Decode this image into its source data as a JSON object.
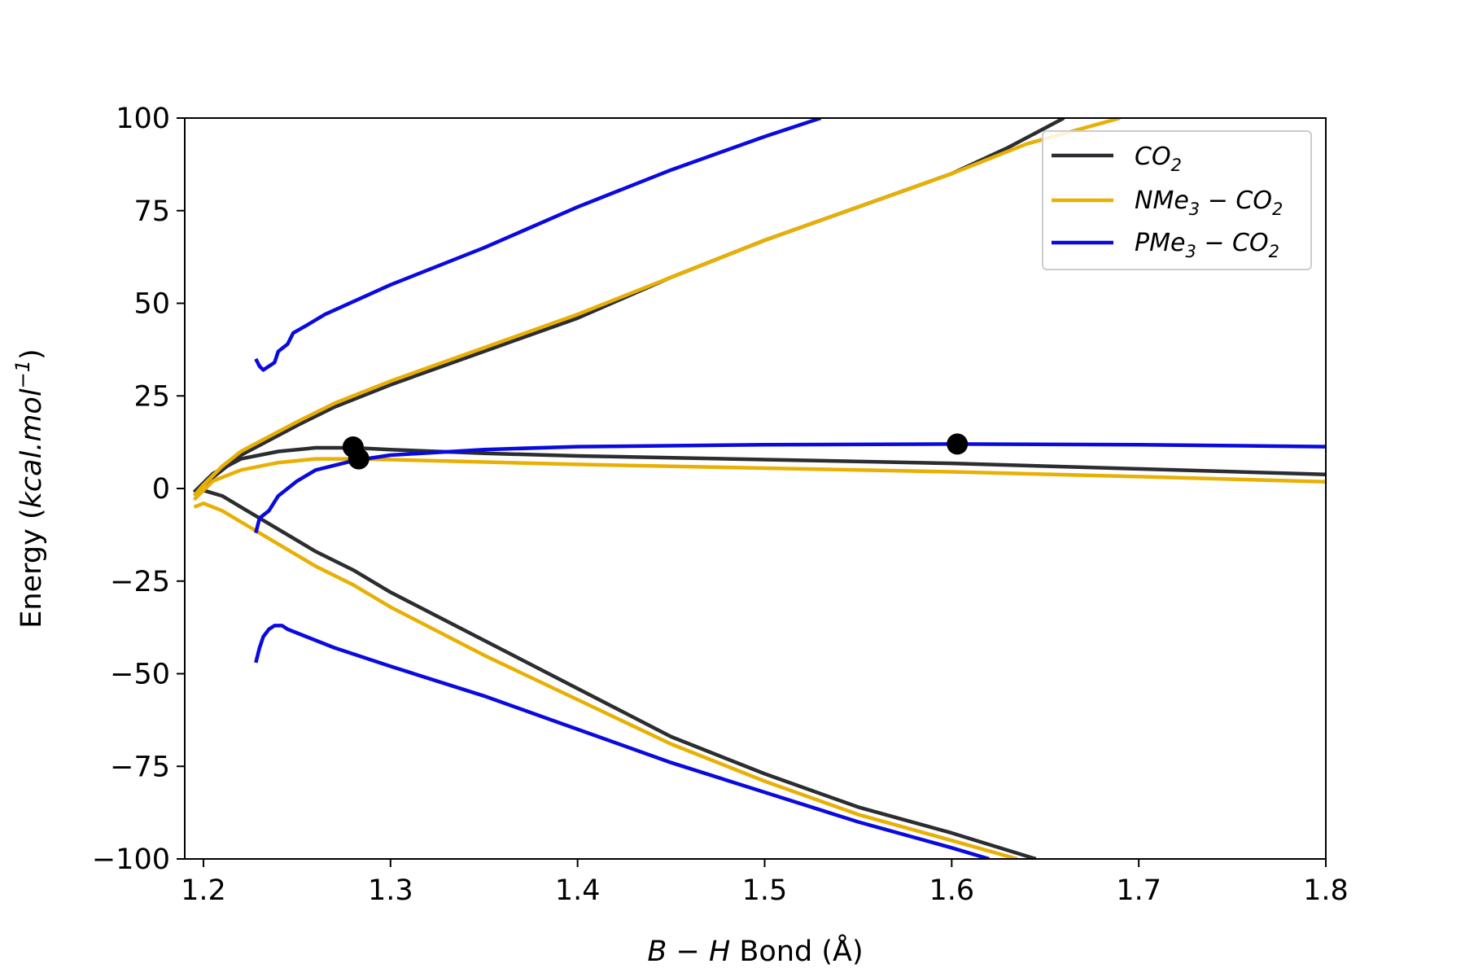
{
  "chart_data": {
    "type": "line",
    "xlabel": {
      "pre": "B − H",
      "post": " Bond (Å)"
    },
    "ylabel": {
      "pre": "Energy (",
      "italic": "kcal.mol",
      "sup": "−1",
      "post": ")"
    },
    "xlim": [
      1.19,
      1.8
    ],
    "ylim": [
      -100,
      100
    ],
    "xticks": [
      1.2,
      1.3,
      1.4,
      1.5,
      1.6,
      1.7,
      1.8
    ],
    "xtick_labels": [
      "1.2",
      "1.3",
      "1.4",
      "1.5",
      "1.6",
      "1.7",
      "1.8"
    ],
    "yticks": [
      100,
      75,
      50,
      25,
      0,
      -25,
      -50,
      -75,
      -100
    ],
    "ytick_labels": [
      "100",
      "75",
      "50",
      "25",
      "0",
      "−25",
      "−50",
      "−75",
      "−100"
    ],
    "grid": false,
    "legend_position": "top-right",
    "series": [
      {
        "name": "CO2",
        "label": {
          "main": "CO",
          "sub": "2"
        },
        "color": "#2b2d30",
        "curves": [
          [
            [
              1.195,
              -1
            ],
            [
              1.2,
              1
            ],
            [
              1.21,
              5
            ],
            [
              1.22,
              9
            ],
            [
              1.235,
              13
            ],
            [
              1.25,
              17
            ],
            [
              1.27,
              22
            ],
            [
              1.3,
              28
            ],
            [
              1.35,
              37
            ],
            [
              1.4,
              46
            ],
            [
              1.45,
              57
            ],
            [
              1.5,
              67
            ],
            [
              1.55,
              76
            ],
            [
              1.6,
              85
            ],
            [
              1.63,
              92
            ],
            [
              1.66,
              100
            ]
          ],
          [
            [
              1.195,
              -1
            ],
            [
              1.205,
              4
            ],
            [
              1.22,
              8
            ],
            [
              1.24,
              10
            ],
            [
              1.26,
              11
            ],
            [
              1.28,
              11
            ],
            [
              1.3,
              10.5
            ],
            [
              1.35,
              9.5
            ],
            [
              1.4,
              8.8
            ],
            [
              1.5,
              7.8
            ],
            [
              1.6,
              6.8
            ],
            [
              1.7,
              5.3
            ],
            [
              1.8,
              3.8
            ]
          ],
          [
            [
              1.195,
              -1
            ],
            [
              1.2,
              -0.5
            ],
            [
              1.21,
              -2
            ],
            [
              1.22,
              -5
            ],
            [
              1.24,
              -11
            ],
            [
              1.26,
              -17
            ],
            [
              1.28,
              -22
            ],
            [
              1.3,
              -28
            ],
            [
              1.35,
              -41
            ],
            [
              1.4,
              -54
            ],
            [
              1.45,
              -67
            ],
            [
              1.5,
              -77
            ],
            [
              1.55,
              -86
            ],
            [
              1.6,
              -93
            ],
            [
              1.645,
              -100
            ]
          ]
        ]
      },
      {
        "name": "NMe3-CO2",
        "label": {
          "main": "NMe",
          "sub": "3",
          "rest": " − CO",
          "sub2": "2"
        },
        "color": "#e8b004",
        "curves": [
          [
            [
              1.195,
              -2
            ],
            [
              1.2,
              1
            ],
            [
              1.21,
              6
            ],
            [
              1.22,
              10
            ],
            [
              1.235,
              14
            ],
            [
              1.25,
              18
            ],
            [
              1.27,
              23
            ],
            [
              1.3,
              29
            ],
            [
              1.35,
              38
            ],
            [
              1.4,
              47
            ],
            [
              1.45,
              57
            ],
            [
              1.5,
              67
            ],
            [
              1.55,
              76
            ],
            [
              1.6,
              85
            ],
            [
              1.64,
              93
            ],
            [
              1.69,
              100
            ]
          ],
          [
            [
              1.195,
              -3
            ],
            [
              1.205,
              2
            ],
            [
              1.22,
              5
            ],
            [
              1.24,
              7
            ],
            [
              1.26,
              8
            ],
            [
              1.28,
              8
            ],
            [
              1.3,
              7.8
            ],
            [
              1.4,
              6.5
            ],
            [
              1.5,
              5.5
            ],
            [
              1.6,
              4.5
            ],
            [
              1.7,
              3.2
            ],
            [
              1.8,
              1.8
            ]
          ],
          [
            [
              1.195,
              -5
            ],
            [
              1.2,
              -4
            ],
            [
              1.21,
              -6
            ],
            [
              1.22,
              -9
            ],
            [
              1.24,
              -15
            ],
            [
              1.26,
              -21
            ],
            [
              1.28,
              -26
            ],
            [
              1.3,
              -32
            ],
            [
              1.35,
              -45
            ],
            [
              1.4,
              -57
            ],
            [
              1.45,
              -69
            ],
            [
              1.5,
              -79
            ],
            [
              1.55,
              -88
            ],
            [
              1.6,
              -95
            ],
            [
              1.635,
              -100
            ]
          ]
        ]
      },
      {
        "name": "PMe3-CO2",
        "label": {
          "main": "PMe",
          "sub": "3",
          "rest": " − CO",
          "sub2": "2"
        },
        "color": "#0a0ae0",
        "curves": [
          [
            [
              1.228,
              35
            ],
            [
              1.23,
              33
            ],
            [
              1.232,
              32
            ],
            [
              1.235,
              33
            ],
            [
              1.238,
              34
            ],
            [
              1.24,
              37
            ],
            [
              1.245,
              39
            ],
            [
              1.248,
              42
            ],
            [
              1.255,
              44
            ],
            [
              1.265,
              47
            ],
            [
              1.3,
              55
            ],
            [
              1.35,
              65
            ],
            [
              1.4,
              76
            ],
            [
              1.45,
              86
            ],
            [
              1.5,
              95
            ],
            [
              1.53,
              100
            ]
          ],
          [
            [
              1.228,
              -12
            ],
            [
              1.23,
              -8
            ],
            [
              1.235,
              -6
            ],
            [
              1.24,
              -2
            ],
            [
              1.245,
              0
            ],
            [
              1.25,
              2
            ],
            [
              1.26,
              5
            ],
            [
              1.28,
              7.5
            ],
            [
              1.3,
              9
            ],
            [
              1.35,
              10.5
            ],
            [
              1.4,
              11.3
            ],
            [
              1.5,
              11.8
            ],
            [
              1.6,
              12
            ],
            [
              1.7,
              11.8
            ],
            [
              1.8,
              11.3
            ]
          ],
          [
            [
              1.228,
              -47
            ],
            [
              1.23,
              -43
            ],
            [
              1.232,
              -40
            ],
            [
              1.235,
              -38
            ],
            [
              1.238,
              -37
            ],
            [
              1.242,
              -37
            ],
            [
              1.245,
              -38
            ],
            [
              1.255,
              -40
            ],
            [
              1.27,
              -43
            ],
            [
              1.3,
              -48
            ],
            [
              1.35,
              -56
            ],
            [
              1.4,
              -65
            ],
            [
              1.45,
              -74
            ],
            [
              1.5,
              -82
            ],
            [
              1.55,
              -90
            ],
            [
              1.6,
              -97
            ],
            [
              1.62,
              -100
            ]
          ]
        ]
      }
    ],
    "markers": [
      {
        "x": 1.28,
        "y": 11.2
      },
      {
        "x": 1.283,
        "y": 8
      },
      {
        "x": 1.603,
        "y": 12
      }
    ],
    "marker_color": "#000000"
  }
}
